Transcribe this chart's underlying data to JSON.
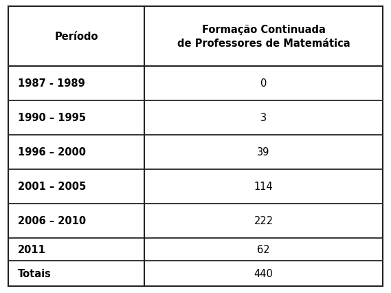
{
  "col1_header": "Período",
  "col2_header": "Formação Continuada\nde Professores de Matemática",
  "rows": [
    {
      "period": "1987 - 1989",
      "value": "0"
    },
    {
      "period": "1990 – 1995",
      "value": "3"
    },
    {
      "period": "1996 – 2000",
      "value": "39"
    },
    {
      "period": "2001 – 2005",
      "value": "114"
    },
    {
      "period": "2006 – 2010",
      "value": "222"
    },
    {
      "period": "2011",
      "value": "62"
    },
    {
      "period": "Totais",
      "value": "440"
    }
  ],
  "background_color": "#ffffff",
  "border_color": "#222222",
  "text_color": "#000000",
  "fig_width": 5.69,
  "fig_height": 4.27,
  "header_fontsize": 10.5,
  "cell_fontsize": 10.5,
  "line_width": 1.5
}
